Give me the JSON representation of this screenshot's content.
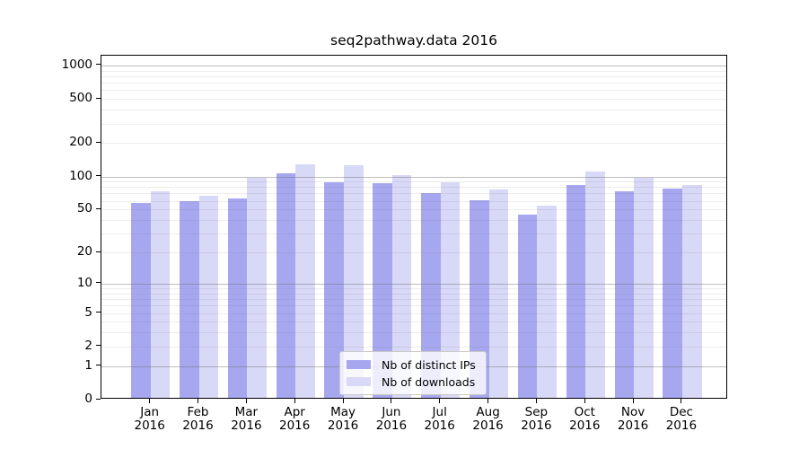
{
  "chart_data": {
    "type": "bar",
    "title": "seq2pathway.data 2016",
    "x_tick_year": "2016",
    "categories": [
      "Jan",
      "Feb",
      "Mar",
      "Apr",
      "May",
      "Jun",
      "Jul",
      "Aug",
      "Sep",
      "Oct",
      "Nov",
      "Dec"
    ],
    "series": [
      {
        "name": "Nb of distinct IPs",
        "color": "#a7a7f0",
        "values": [
          55,
          57,
          61,
          102,
          86,
          84,
          68,
          59,
          43,
          81,
          70,
          75
        ]
      },
      {
        "name": "Nb of downloads",
        "color": "#d8d8f7",
        "values": [
          71,
          64,
          93,
          123,
          121,
          100,
          86,
          74,
          52,
          106,
          94,
          81
        ]
      }
    ],
    "y_scale": "log10(1+x)",
    "ylim": [
      0,
      1180
    ],
    "y_ticks": [
      0,
      1,
      2,
      5,
      10,
      20,
      50,
      100,
      200,
      500,
      1000
    ],
    "y_major_gridlines": [
      1,
      10,
      100,
      1000
    ],
    "y_minor_gridlines": [
      2,
      3,
      4,
      5,
      6,
      7,
      8,
      9,
      20,
      30,
      40,
      50,
      60,
      70,
      80,
      90,
      200,
      300,
      400,
      500,
      600,
      700,
      800,
      900
    ],
    "grid": "on",
    "legend_position": "bottom-center"
  },
  "colors": {
    "bar_distinct_ips": "#a7a7f0",
    "bar_downloads": "#d8d8f7",
    "grid_major": "#bdbdbd",
    "grid_minor": "#ededed",
    "spine": "#000000",
    "background": "#ffffff"
  }
}
